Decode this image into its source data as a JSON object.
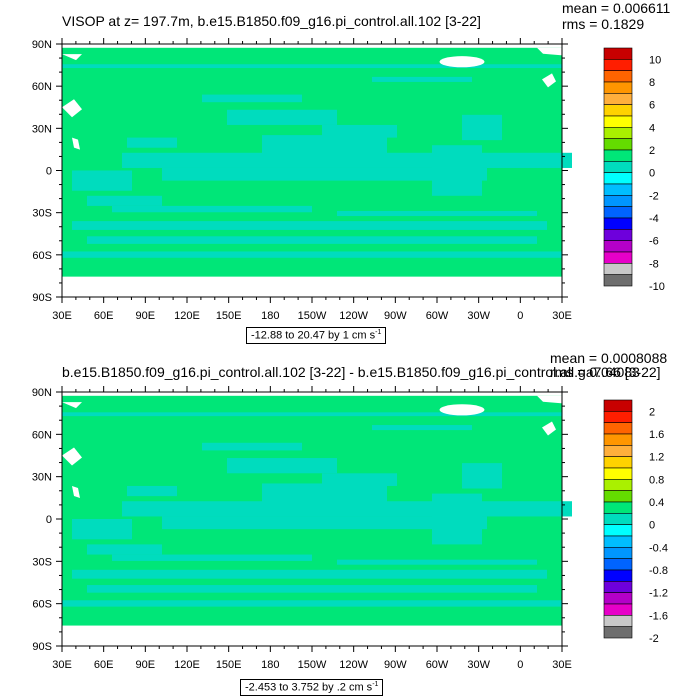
{
  "chart_data": [
    {
      "type": "heatmap",
      "title": "VISOP at z= 197.7m, b.e15.B1850.f09_g16.pi_control.all.102 [3-22]",
      "mean_text": "mean = 0.006611",
      "rms_text": "rms = 0.1829",
      "range_text": "-12.88 to 20.47 by 1 cm s",
      "range_sup": "-1",
      "x_ticks": [
        "30E",
        "60E",
        "90E",
        "120E",
        "150E",
        "180",
        "150W",
        "120W",
        "90W",
        "60W",
        "30W",
        "0",
        "30E"
      ],
      "y_ticks": [
        "90N",
        "60N",
        "30N",
        "0",
        "30S",
        "60S",
        "90S"
      ],
      "colorbar_labels": [
        "10",
        "8",
        "6",
        "4",
        "2",
        "0",
        "-2",
        "-4",
        "-6",
        "-8",
        "-10"
      ],
      "colorbar_colors": [
        "#c80000",
        "#ff1e00",
        "#ff6400",
        "#ff9600",
        "#ffaf3c",
        "#ffd200",
        "#ffff00",
        "#aaf000",
        "#64dc00",
        "#00e678",
        "#00dcbe",
        "#00ffff",
        "#00beff",
        "#0096ff",
        "#0064ff",
        "#0000ff",
        "#6e00dc",
        "#b400c8",
        "#e600c8",
        "#c8c8c8",
        "#6e6e6e"
      ]
    },
    {
      "type": "heatmap",
      "title": "b.e15.B1850.f09_g16.pi_control.all.102 [3-22] - b.e15.B1850.f09_g16.pi_control.all.ga7.66 [3-22]",
      "mean_text": "mean = 0.0008088",
      "rms_text": "rms = 0.04083",
      "range_text": "-2.453 to 3.752 by .2 cm s",
      "range_sup": "-1",
      "x_ticks": [
        "30E",
        "60E",
        "90E",
        "120E",
        "150E",
        "180",
        "150W",
        "120W",
        "90W",
        "60W",
        "30W",
        "0",
        "30E"
      ],
      "y_ticks": [
        "90N",
        "60N",
        "30N",
        "0",
        "30S",
        "60S",
        "90S"
      ],
      "colorbar_labels": [
        "2",
        "1.6",
        "1.2",
        "0.8",
        "0.4",
        "0",
        "-0.4",
        "-0.8",
        "-1.2",
        "-1.6",
        "-2"
      ],
      "colorbar_colors": [
        "#c80000",
        "#ff1e00",
        "#ff6400",
        "#ff9600",
        "#ffaf3c",
        "#ffd200",
        "#ffff00",
        "#aaf000",
        "#64dc00",
        "#00e678",
        "#00dcbe",
        "#00ffff",
        "#00beff",
        "#0096ff",
        "#0064ff",
        "#0000ff",
        "#6e00dc",
        "#b400c8",
        "#e600c8",
        "#c8c8c8",
        "#6e6e6e"
      ]
    }
  ],
  "colors": {
    "field_green": "#00e678",
    "field_cyan": "#00dcbe",
    "land_white": "#ffffff"
  }
}
